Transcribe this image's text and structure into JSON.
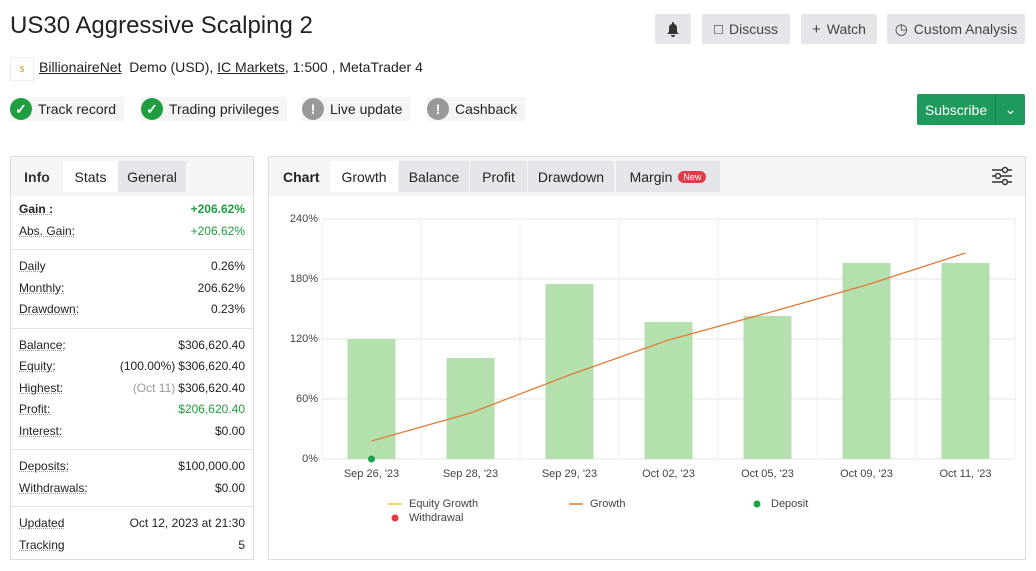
{
  "header": {
    "title": "US30 Aggressive Scalping 2",
    "buttons": [
      "Discuss",
      "Watch",
      "Custom Analysis"
    ],
    "author": "BillionaireNet",
    "account": "Demo (USD),",
    "broker": "IC Markets",
    "details": ", 1:500 , MetaTrader 4",
    "badges": [
      {
        "label": "Track record",
        "ok": true
      },
      {
        "label": "Trading privileges",
        "ok": true
      },
      {
        "label": "Live update",
        "ok": false
      },
      {
        "label": "Cashback",
        "ok": false
      }
    ],
    "subscribe": "Subscribe"
  },
  "stats": {
    "tabs": [
      "Info",
      "Stats",
      "General"
    ],
    "active_tab": 1,
    "groups": [
      [
        {
          "label": "Gain :",
          "value": "+206.62%",
          "color": "#1e9e3e",
          "bold": true
        },
        {
          "label": "Abs. Gain:",
          "value": "+206.62%",
          "color": "#1e9e3e"
        }
      ],
      [
        {
          "label": "Daily",
          "value": "0.26%"
        },
        {
          "label": "Monthly:",
          "value": "206.62%"
        },
        {
          "label": "Drawdown:",
          "value": "0.23%"
        }
      ],
      [
        {
          "label": "Balance:",
          "value": "$306,620.40"
        },
        {
          "label": "Equity:",
          "note": "(100.00%)",
          "value": "$306,620.40"
        },
        {
          "label": "Highest:",
          "note": "(Oct 11)",
          "value": "$306,620.40"
        },
        {
          "label": "Profit:",
          "value": "$206,620.40",
          "color": "#1e9e3e"
        },
        {
          "label": "Interest:",
          "value": "$0.00"
        }
      ],
      [
        {
          "label": "Deposits:",
          "value": "$100,000.00"
        },
        {
          "label": "Withdrawals:",
          "value": "$0.00"
        }
      ],
      [
        {
          "label": "Updated",
          "value": "Oct 12, 2023 at 21:30"
        },
        {
          "label": "Tracking",
          "value": "5"
        }
      ]
    ]
  },
  "chart_tabs": {
    "label": "Chart",
    "tabs": [
      "Growth",
      "Balance",
      "Profit",
      "Drawdown",
      "Margin"
    ],
    "active_tab": 0,
    "new_badge": "New"
  },
  "chart_data": {
    "type": "bar",
    "categories": [
      "Sep 26, '23",
      "Sep 28, '23",
      "Sep 29, '23",
      "Oct 02, '23",
      "Oct 05, '23",
      "Oct 09, '23",
      "Oct 11, '23"
    ],
    "bars": {
      "color": "#b4e0ae",
      "values": [
        120,
        101,
        175,
        137,
        143,
        196,
        196
      ]
    },
    "series": [
      {
        "name": "Equity Growth",
        "color": "#f5c342",
        "kind": "line"
      },
      {
        "name": "Growth",
        "color": "#e07b39",
        "kind": "line",
        "values": [
          18,
          46,
          84,
          119,
          146,
          174,
          206
        ]
      },
      {
        "name": "Deposit",
        "color": "#1aa34a",
        "kind": "dot",
        "values": [
          0,
          null,
          null,
          null,
          null,
          null,
          null
        ]
      },
      {
        "name": "Withdrawal",
        "color": "#e03c3c",
        "kind": "dot"
      }
    ],
    "ylim": [
      0,
      240
    ],
    "yticks": [
      {
        "value": 0,
        "label": "0%"
      },
      {
        "value": 60,
        "label": "60%"
      },
      {
        "value": 120,
        "label": "120%"
      },
      {
        "value": 180,
        "label": "180%"
      },
      {
        "value": 240,
        "label": "240%"
      }
    ],
    "grid": true
  }
}
